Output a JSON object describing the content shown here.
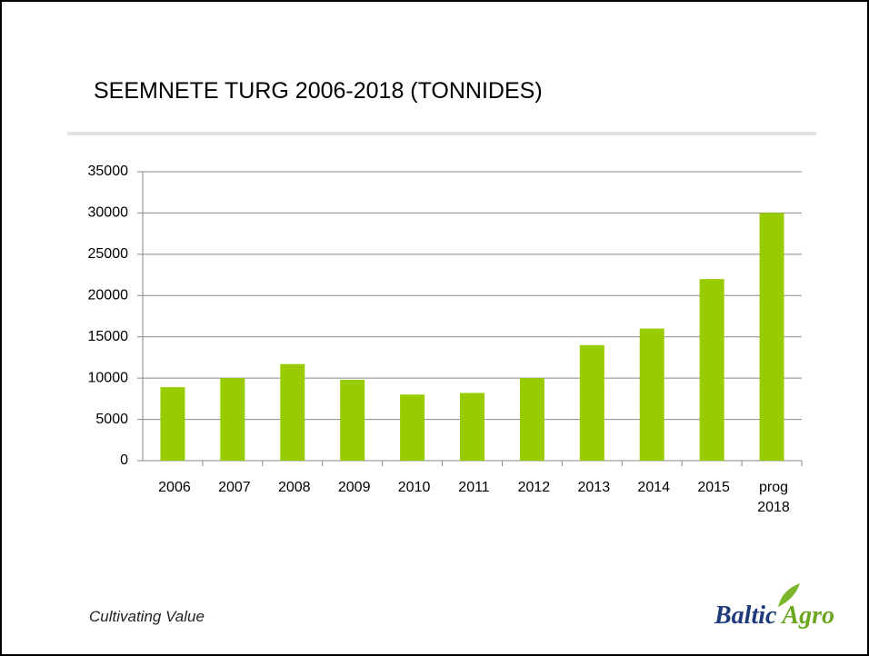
{
  "header": {
    "title": "SEEMNETE TURG 2006-2018 (TONNIDES)"
  },
  "chart_data": {
    "type": "bar",
    "categories": [
      "2006",
      "2007",
      "2008",
      "2009",
      "2010",
      "2011",
      "2012",
      "2013",
      "2014",
      "2015",
      "prog 2018"
    ],
    "values": [
      8900,
      10000,
      11700,
      9800,
      8000,
      8200,
      10000,
      14000,
      16000,
      22000,
      30000
    ],
    "color": "#99cc00",
    "ylim": [
      0,
      35000
    ],
    "yticks": [
      0,
      5000,
      10000,
      15000,
      20000,
      25000,
      30000,
      35000
    ],
    "grid": true
  },
  "footer": {
    "slogan": "Cultivating Value",
    "logo_left": "Baltic",
    "logo_right": "Agro"
  }
}
